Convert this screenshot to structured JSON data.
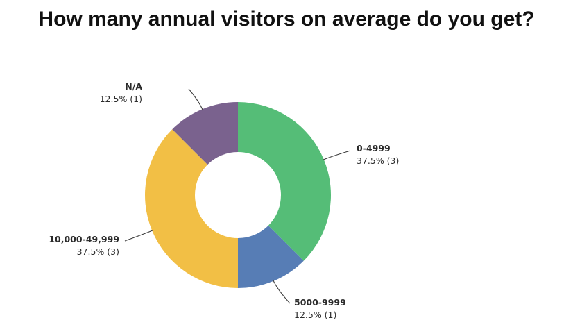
{
  "chart_data": {
    "type": "pie",
    "style": "donut",
    "title": "How many annual visitors on average do you get?",
    "slices": [
      {
        "label": "0-4999",
        "value": 37.5,
        "count": 3,
        "value_text": "37.5% (3)",
        "color": "#55bd77"
      },
      {
        "label": "5000-9999",
        "value": 12.5,
        "count": 1,
        "value_text": "12.5% (1)",
        "color": "#577db5"
      },
      {
        "label": "10,000-49,999",
        "value": 37.5,
        "count": 3,
        "value_text": "37.5% (3)",
        "color": "#f2bf45"
      },
      {
        "label": "N/A",
        "value": 12.5,
        "count": 1,
        "value_text": "12.5% (1)",
        "color": "#7a628e"
      }
    ]
  }
}
